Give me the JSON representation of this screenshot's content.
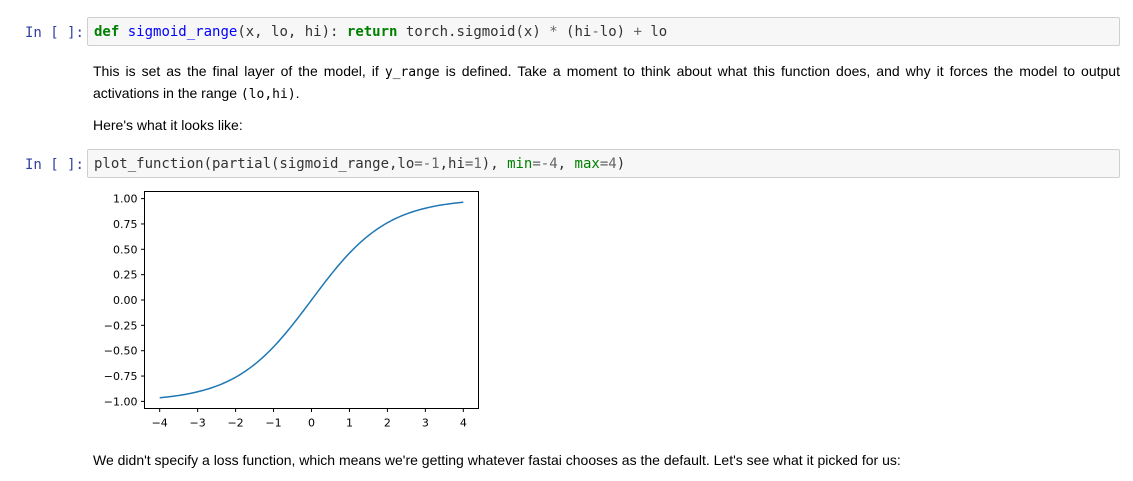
{
  "cells": {
    "cell1": {
      "prompt": "In [ ]:",
      "code": {
        "def": "def",
        "fn_name": "sigmoid_range",
        "params": "(x, lo, hi): ",
        "ret": "return",
        "body_a": " torch.sigmoid(x) ",
        "star": "*",
        "body_b": " (hi",
        "minus": "-",
        "body_c": "lo) ",
        "plus": "+",
        "body_d": " lo"
      }
    },
    "md1": {
      "p1_a": "This is set as the final layer of the model, if ",
      "p1_code1": "y_range",
      "p1_b": " is defined. Take a moment to think about what this function does, and why it forces the model to output activations in the range ",
      "p1_code2": "(lo,hi)",
      "p1_c": ".",
      "p2": "Here's what it looks like:"
    },
    "cell2": {
      "prompt": "In [ ]:",
      "code": {
        "a": "plot_function(partial(sigmoid_range,lo",
        "eq1": "=",
        "n1": "-1",
        "b": ",hi",
        "eq2": "=",
        "n2": "1",
        "c": "), ",
        "kw1": "min",
        "eq3": "=",
        "n3": "-4",
        "d": ", ",
        "kw2": "max",
        "eq4": "=",
        "n4": "4",
        "e": ")"
      }
    },
    "md2": {
      "text": "We didn't specify a loss function, which means we're getting whatever fastai chooses as the default. Let's see what it picked for us:"
    }
  },
  "chart_data": {
    "type": "line",
    "series_color": "#1f77b4",
    "function": "2*sigmoid(x)-1",
    "x": [
      -4,
      -3.5,
      -3,
      -2.5,
      -2,
      -1.5,
      -1,
      -0.5,
      0,
      0.5,
      1,
      1.5,
      2,
      2.5,
      3,
      3.5,
      4
    ],
    "y": [
      -0.964,
      -0.943,
      -0.905,
      -0.848,
      -0.762,
      -0.635,
      -0.462,
      -0.245,
      0.0,
      0.245,
      0.462,
      0.635,
      0.762,
      0.848,
      0.905,
      0.943,
      0.964
    ],
    "xlim": [
      -4.4,
      4.4
    ],
    "ylim": [
      -1.07,
      1.07
    ],
    "xticks": [
      -4,
      -3,
      -2,
      -1,
      0,
      1,
      2,
      3,
      4
    ],
    "xtick_labels": [
      "−4",
      "−3",
      "−2",
      "−1",
      "0",
      "1",
      "2",
      "3",
      "4"
    ],
    "yticks": [
      1.0,
      0.75,
      0.5,
      0.25,
      0.0,
      -0.25,
      -0.5,
      -0.75,
      -1.0
    ],
    "ytick_labels": [
      "1.00",
      "0.75",
      "0.50",
      "0.25",
      "0.00",
      "−0.25",
      "−0.50",
      "−0.75",
      "−1.00"
    ],
    "grid": false,
    "title": "",
    "xlabel": "",
    "ylabel": ""
  }
}
